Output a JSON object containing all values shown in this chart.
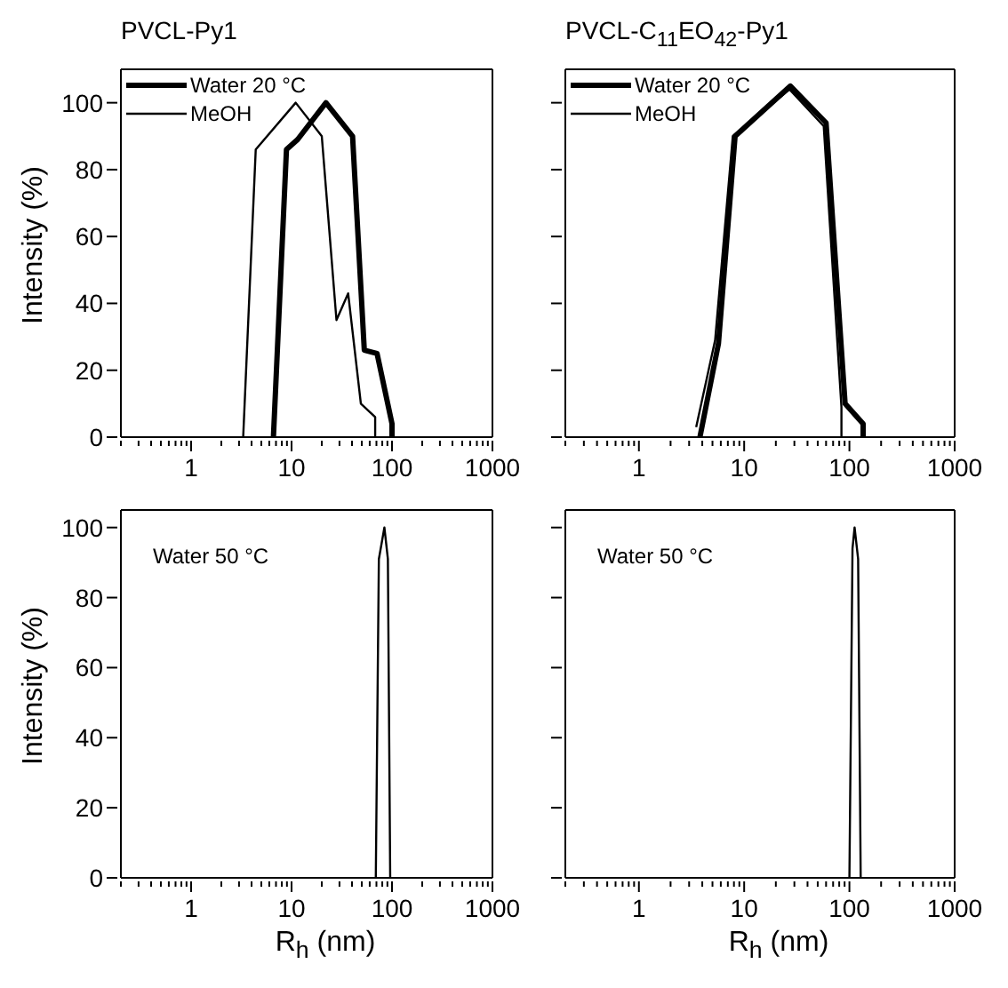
{
  "chart_data": [
    {
      "type": "line",
      "title": "PVCL-Py1",
      "ylabel": "Intensity (%)",
      "log": "x",
      "xlim": [
        0.2,
        1000
      ],
      "ylim": [
        0,
        110
      ],
      "marker": "none",
      "legend": "top left",
      "line_style": "solid",
      "xticks": [
        {
          "value": 0.2,
          "label": null
        },
        {
          "value": 0.3,
          "label": null
        },
        {
          "value": 0.4,
          "label": null
        },
        {
          "value": 0.5,
          "label": null
        },
        {
          "value": 0.6,
          "label": null
        },
        {
          "value": 0.7,
          "label": null
        },
        {
          "value": 0.8,
          "label": null
        },
        {
          "value": 0.9,
          "label": null
        },
        1,
        {
          "value": 2,
          "label": null
        },
        {
          "value": 3,
          "label": null
        },
        {
          "value": 4,
          "label": null
        },
        {
          "value": 5,
          "label": null
        },
        {
          "value": 6,
          "label": null
        },
        {
          "value": 7,
          "label": null
        },
        {
          "value": 8,
          "label": null
        },
        {
          "value": 9,
          "label": null
        },
        10,
        {
          "value": 20,
          "label": null
        },
        {
          "value": 30,
          "label": null
        },
        {
          "value": 40,
          "label": null
        },
        {
          "value": 50,
          "label": null
        },
        {
          "value": 60,
          "label": null
        },
        {
          "value": 70,
          "label": null
        },
        {
          "value": 80,
          "label": null
        },
        {
          "value": 90,
          "label": null
        },
        100,
        {
          "value": 200,
          "label": null
        },
        {
          "value": 300,
          "label": null
        },
        {
          "value": 400,
          "label": null
        },
        {
          "value": 500,
          "label": null
        },
        {
          "value": 600,
          "label": null
        },
        {
          "value": 700,
          "label": null
        },
        {
          "value": 800,
          "label": null
        },
        {
          "value": 900,
          "label": null
        },
        1000
      ],
      "yticks": [
        0,
        20,
        40,
        60,
        80,
        100
      ],
      "series": [
        {
          "name": "Water 20 °C",
          "color": "#000000",
          "x": [
            6.6,
            8.9,
            11.5,
            22,
            40.5,
            53,
            71,
            100,
            100
          ],
          "values": [
            0,
            86,
            89,
            100,
            90,
            26,
            25,
            4,
            0
          ]
        },
        {
          "name": "MeOH",
          "color": "#000000",
          "x": [
            3.3,
            4.4,
            11,
            20,
            28,
            36.6,
            49,
            68,
            68
          ],
          "values": [
            0,
            86,
            100,
            90,
            35,
            43,
            10,
            6,
            0
          ]
        }
      ]
    },
    {
      "type": "line",
      "title": "PVCL-C$_{11}$EO$_{42}$-Py1",
      "log": "x",
      "xlim": [
        0.2,
        1000
      ],
      "ylim": [
        0,
        110
      ],
      "marker": "none",
      "legend": "top left",
      "line_style": "solid",
      "tick_labels": "x",
      "xticks": [
        {
          "value": 0.2,
          "label": null
        },
        {
          "value": 0.3,
          "label": null
        },
        {
          "value": 0.4,
          "label": null
        },
        {
          "value": 0.5,
          "label": null
        },
        {
          "value": 0.6,
          "label": null
        },
        {
          "value": 0.7,
          "label": null
        },
        {
          "value": 0.8,
          "label": null
        },
        {
          "value": 0.9,
          "label": null
        },
        1,
        {
          "value": 2,
          "label": null
        },
        {
          "value": 3,
          "label": null
        },
        {
          "value": 4,
          "label": null
        },
        {
          "value": 5,
          "label": null
        },
        {
          "value": 6,
          "label": null
        },
        {
          "value": 7,
          "label": null
        },
        {
          "value": 8,
          "label": null
        },
        {
          "value": 9,
          "label": null
        },
        10,
        {
          "value": 20,
          "label": null
        },
        {
          "value": 30,
          "label": null
        },
        {
          "value": 40,
          "label": null
        },
        {
          "value": 50,
          "label": null
        },
        {
          "value": 60,
          "label": null
        },
        {
          "value": 70,
          "label": null
        },
        {
          "value": 80,
          "label": null
        },
        {
          "value": 90,
          "label": null
        },
        100,
        {
          "value": 200,
          "label": null
        },
        {
          "value": 300,
          "label": null
        },
        {
          "value": 400,
          "label": null
        },
        {
          "value": 500,
          "label": null
        },
        {
          "value": 600,
          "label": null
        },
        {
          "value": 700,
          "label": null
        },
        {
          "value": 800,
          "label": null
        },
        {
          "value": 900,
          "label": null
        },
        1000
      ],
      "yticks": [
        0,
        20,
        40,
        60,
        80,
        100
      ],
      "series": [
        {
          "name": "Water 20 °C",
          "color": "#000000",
          "x": [
            3.8,
            5.7,
            8.2,
            27.5,
            60,
            91,
            135,
            135
          ],
          "values": [
            0,
            28,
            90,
            105,
            94,
            10,
            4,
            0
          ]
        },
        {
          "name": "MeOH",
          "color": "#000000",
          "x": [
            3.5,
            5.3,
            7.8,
            27,
            57,
            84,
            84
          ],
          "values": [
            3,
            29,
            90,
            104,
            93,
            9,
            0
          ]
        }
      ]
    },
    {
      "type": "line",
      "ylabel": "Intensity (%)",
      "xlabel": "R$_{h}$ (nm)",
      "annotations": [
        "Water 50 °C"
      ],
      "log": "x",
      "xlim": [
        0.2,
        1000
      ],
      "ylim": [
        0,
        105
      ],
      "marker": "none",
      "line_style": "solid",
      "xticks": [
        {
          "value": 0.2,
          "label": null
        },
        {
          "value": 0.3,
          "label": null
        },
        {
          "value": 0.4,
          "label": null
        },
        {
          "value": 0.5,
          "label": null
        },
        {
          "value": 0.6,
          "label": null
        },
        {
          "value": 0.7,
          "label": null
        },
        {
          "value": 0.8,
          "label": null
        },
        {
          "value": 0.9,
          "label": null
        },
        1,
        {
          "value": 2,
          "label": null
        },
        {
          "value": 3,
          "label": null
        },
        {
          "value": 4,
          "label": null
        },
        {
          "value": 5,
          "label": null
        },
        {
          "value": 6,
          "label": null
        },
        {
          "value": 7,
          "label": null
        },
        {
          "value": 8,
          "label": null
        },
        {
          "value": 9,
          "label": null
        },
        10,
        {
          "value": 20,
          "label": null
        },
        {
          "value": 30,
          "label": null
        },
        {
          "value": 40,
          "label": null
        },
        {
          "value": 50,
          "label": null
        },
        {
          "value": 60,
          "label": null
        },
        {
          "value": 70,
          "label": null
        },
        {
          "value": 80,
          "label": null
        },
        {
          "value": 90,
          "label": null
        },
        100,
        {
          "value": 200,
          "label": null
        },
        {
          "value": 300,
          "label": null
        },
        {
          "value": 400,
          "label": null
        },
        {
          "value": 500,
          "label": null
        },
        {
          "value": 600,
          "label": null
        },
        {
          "value": 700,
          "label": null
        },
        {
          "value": 800,
          "label": null
        },
        {
          "value": 900,
          "label": null
        },
        1000
      ],
      "yticks": [
        0,
        20,
        40,
        60,
        80,
        100
      ],
      "series": [
        {
          "color": "#000000",
          "x": [
            69,
            74,
            84,
            91,
            96
          ],
          "values": [
            0,
            91,
            100,
            91,
            0
          ]
        }
      ]
    },
    {
      "type": "line",
      "xlabel": "R$_{h}$ (nm)",
      "annotations": [
        "Water 50 °C"
      ],
      "log": "x",
      "xlim": [
        0.2,
        1000
      ],
      "ylim": [
        0,
        105
      ],
      "marker": "none",
      "line_style": "solid",
      "tick_labels": "x",
      "xticks": [
        {
          "value": 0.2,
          "label": null
        },
        {
          "value": 0.3,
          "label": null
        },
        {
          "value": 0.4,
          "label": null
        },
        {
          "value": 0.5,
          "label": null
        },
        {
          "value": 0.6,
          "label": null
        },
        {
          "value": 0.7,
          "label": null
        },
        {
          "value": 0.8,
          "label": null
        },
        {
          "value": 0.9,
          "label": null
        },
        1,
        {
          "value": 2,
          "label": null
        },
        {
          "value": 3,
          "label": null
        },
        {
          "value": 4,
          "label": null
        },
        {
          "value": 5,
          "label": null
        },
        {
          "value": 6,
          "label": null
        },
        {
          "value": 7,
          "label": null
        },
        {
          "value": 8,
          "label": null
        },
        {
          "value": 9,
          "label": null
        },
        10,
        {
          "value": 20,
          "label": null
        },
        {
          "value": 30,
          "label": null
        },
        {
          "value": 40,
          "label": null
        },
        {
          "value": 50,
          "label": null
        },
        {
          "value": 60,
          "label": null
        },
        {
          "value": 70,
          "label": null
        },
        {
          "value": 80,
          "label": null
        },
        {
          "value": 90,
          "label": null
        },
        100,
        {
          "value": 200,
          "label": null
        },
        {
          "value": 300,
          "label": null
        },
        {
          "value": 400,
          "label": null
        },
        {
          "value": 500,
          "label": null
        },
        {
          "value": 600,
          "label": null
        },
        {
          "value": 700,
          "label": null
        },
        {
          "value": 800,
          "label": null
        },
        {
          "value": 900,
          "label": null
        },
        1000
      ],
      "yticks": [
        0,
        20,
        40,
        60,
        80,
        100
      ],
      "series": [
        {
          "color": "#000000",
          "x": [
            100,
            107,
            112,
            121,
            128
          ],
          "values": [
            0,
            94,
            100,
            91,
            0
          ]
        }
      ]
    }
  ]
}
